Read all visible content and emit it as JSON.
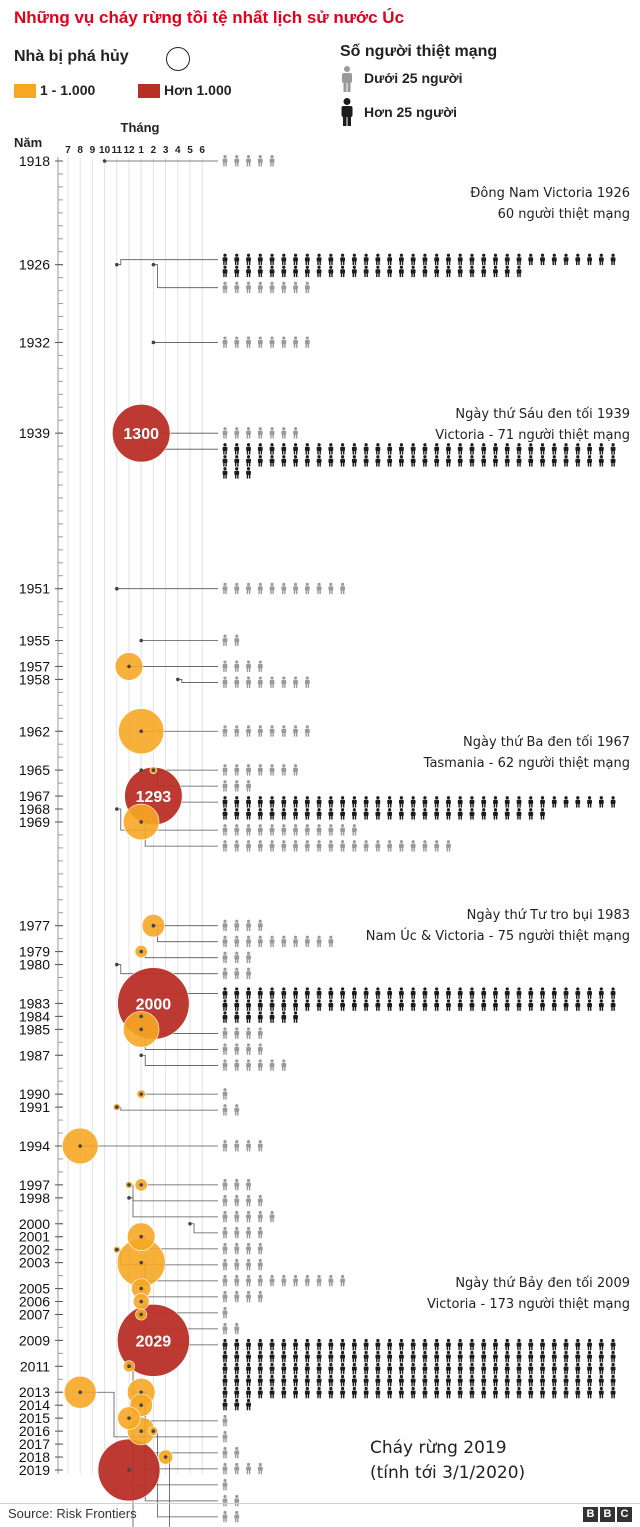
{
  "title": "Những vụ cháy rừng tồi tệ nhất lịch sử nước Úc",
  "legend": {
    "houses_title": "Nhà bị phá hủy",
    "small_label": "1 - 1.000",
    "large_label": "Hơn 1.000",
    "deaths_title": "Số người thiệt mạng",
    "under_label": "Dưới 25 người",
    "over_label": "Hơn 25 người"
  },
  "colors": {
    "accent": "#e3001b",
    "small": "#f6a724",
    "large": "#b82f26",
    "person_small": "#9a9a9a",
    "person_large": "#1c1c1c"
  },
  "annotations": {
    "a1926": [
      "Đông Nam Victoria 1926",
      "60 người thiệt mạng"
    ],
    "a1939": [
      "Ngày thứ Sáu đen tối 1939",
      "Victoria - 71 người thiệt mạng"
    ],
    "a1967": [
      "Ngày thứ Ba đen tối 1967",
      "Tasmania - 62 người thiệt mạng"
    ],
    "a1983": [
      "Ngày thứ Tư tro bụi 1983",
      "Nam Úc & Victoria - 75 người thiệt mạng"
    ],
    "a2009": [
      "Ngày thứ Bảy đen tối 2009",
      "Victoria - 173 người thiệt mạng"
    ],
    "a2019": [
      "Cháy rừng 2019",
      "(tính tới 3/1/2020)"
    ]
  },
  "source": "Source: Risk Frontiers",
  "brand": [
    "B",
    "B",
    "C"
  ],
  "chart_data": {
    "type": "scatter",
    "title": "Những vụ cháy rừng tồi tệ nhất lịch sử nước Úc",
    "xlabel": "Tháng",
    "ylabel": "Năm",
    "x_ticks": [
      "7",
      "8",
      "9",
      "10",
      "11",
      "12",
      "1",
      "2",
      "3",
      "4",
      "5",
      "6"
    ],
    "y_range": [
      1918,
      2019
    ],
    "year_labels": [
      1918,
      1926,
      1932,
      1939,
      1951,
      1955,
      1957,
      1958,
      1962,
      1965,
      1967,
      1968,
      1969,
      1977,
      1979,
      1980,
      1983,
      1984,
      1985,
      1987,
      1990,
      1991,
      1994,
      1997,
      1998,
      2000,
      2001,
      2002,
      2003,
      2005,
      2006,
      2007,
      2009,
      2011,
      2013,
      2014,
      2015,
      2016,
      2017,
      2018,
      2019
    ],
    "bubble_labels": [
      {
        "year": 1939,
        "houses": "1300"
      },
      {
        "year": 1967,
        "houses": "1293"
      },
      {
        "year": 1983,
        "houses": "2000"
      },
      {
        "year": 2009,
        "houses": "2029"
      }
    ],
    "fires": [
      {
        "year": 1918,
        "month": "10",
        "houses": 0,
        "deaths": 5
      },
      {
        "year": 1926,
        "month": "11",
        "houses": 0,
        "deaths": 60
      },
      {
        "year": 1926,
        "month": "2",
        "houses": 0,
        "deaths": 8
      },
      {
        "year": 1932,
        "month": "2",
        "houses": 0,
        "deaths": 8
      },
      {
        "year": 1939,
        "month": "1",
        "houses": 0,
        "deaths": 7
      },
      {
        "year": 1939,
        "month": "1",
        "houses": 1300,
        "deaths": 71
      },
      {
        "year": 1951,
        "month": "11",
        "houses": 0,
        "deaths": 11
      },
      {
        "year": 1955,
        "month": "1",
        "houses": 0,
        "deaths": 2
      },
      {
        "year": 1957,
        "month": "12",
        "houses": 300,
        "deaths": 4
      },
      {
        "year": 1958,
        "month": "4",
        "houses": 0,
        "deaths": 8
      },
      {
        "year": 1962,
        "month": "1",
        "houses": 800,
        "deaths": 8
      },
      {
        "year": 1965,
        "month": "1",
        "houses": 0,
        "deaths": 7
      },
      {
        "year": 1965,
        "month": "2",
        "houses": 10,
        "deaths": 3
      },
      {
        "year": 1967,
        "month": "2",
        "houses": 1293,
        "deaths": 62
      },
      {
        "year": 1968,
        "month": "11",
        "houses": 0,
        "deaths": 12
      },
      {
        "year": 1969,
        "month": "1",
        "houses": 500,
        "deaths": 20
      },
      {
        "year": 1977,
        "month": "2",
        "houses": 0,
        "deaths": 4
      },
      {
        "year": 1977,
        "month": "2",
        "houses": 200,
        "deaths": 10
      },
      {
        "year": 1979,
        "month": "1",
        "houses": 60,
        "deaths": 3
      },
      {
        "year": 1980,
        "month": "11",
        "houses": 0,
        "deaths": 3
      },
      {
        "year": 1983,
        "month": "2",
        "houses": 2000,
        "deaths": 75
      },
      {
        "year": 1984,
        "month": "1",
        "houses": 0,
        "deaths": 4
      },
      {
        "year": 1985,
        "month": "1",
        "houses": 500,
        "deaths": 4
      },
      {
        "year": 1987,
        "month": "1",
        "houses": 0,
        "deaths": 6
      },
      {
        "year": 1990,
        "month": "1",
        "houses": 30,
        "deaths": 1
      },
      {
        "year": 1991,
        "month": "11",
        "houses": 20,
        "deaths": 2
      },
      {
        "year": 1994,
        "month": "8",
        "houses": 500,
        "deaths": 4
      },
      {
        "year": 1997,
        "month": "1",
        "houses": 60,
        "deaths": 3
      },
      {
        "year": 1997,
        "month": "12",
        "houses": 20,
        "deaths": 4
      },
      {
        "year": 1998,
        "month": "12",
        "houses": 0,
        "deaths": 5
      },
      {
        "year": 2000,
        "month": "5",
        "houses": 0,
        "deaths": 4
      },
      {
        "year": 2001,
        "month": "1",
        "houses": 300,
        "deaths": 4
      },
      {
        "year": 2002,
        "month": "11",
        "houses": 10,
        "deaths": 4
      },
      {
        "year": 2003,
        "month": "1",
        "houses": 900,
        "deaths": 11
      },
      {
        "year": 2005,
        "month": "1",
        "houses": 150,
        "deaths": 4
      },
      {
        "year": 2006,
        "month": "1",
        "houses": 100,
        "deaths": 1
      },
      {
        "year": 2007,
        "month": "1",
        "houses": 50,
        "deaths": 2
      },
      {
        "year": 2009,
        "month": "2",
        "houses": 2029,
        "deaths": 173
      },
      {
        "year": 2011,
        "month": "12",
        "houses": 50,
        "deaths": 1
      },
      {
        "year": 2013,
        "month": "8",
        "houses": 400,
        "deaths": 1
      },
      {
        "year": 2013,
        "month": "1",
        "houses": 300,
        "deaths": 2
      },
      {
        "year": 2014,
        "month": "1",
        "houses": 200,
        "deaths": 4
      },
      {
        "year": 2015,
        "month": "12",
        "houses": 200,
        "deaths": 1
      },
      {
        "year": 2016,
        "month": "1",
        "houses": 300,
        "deaths": 2
      },
      {
        "year": 2016,
        "month": "2",
        "houses": 30,
        "deaths": 2
      },
      {
        "year": 2018,
        "month": "3",
        "houses": 80,
        "deaths": 0
      },
      {
        "year": 2019,
        "month": "12",
        "houses": 1500,
        "deaths": 18
      }
    ]
  }
}
